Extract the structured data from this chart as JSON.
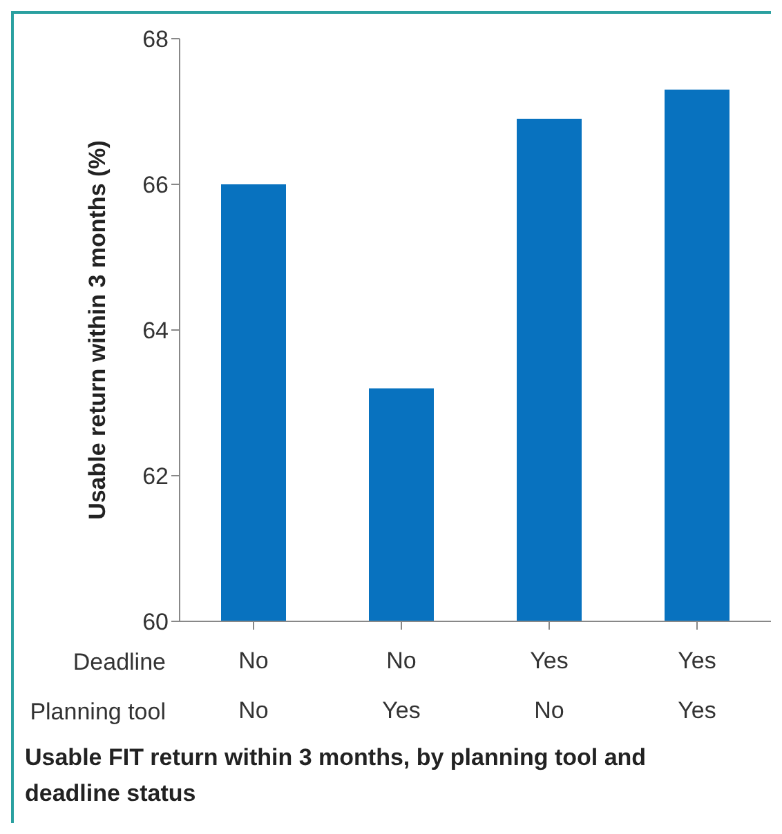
{
  "chart_data": {
    "type": "bar",
    "title": "Usable FIT return within 3 months, by planning tool and deadline status",
    "ylabel": "Usable return within 3 months (%)",
    "categories": [
      "No\nNo",
      "No\nYes",
      "Yes\nNo",
      "Yes\nYes"
    ],
    "annotations": [
      "Deadline",
      "Planning tool"
    ],
    "values": [
      66.0,
      63.2,
      66.9,
      67.3
    ],
    "color": "#0872bf",
    "ylim": [
      60,
      68
    ],
    "yticks": [
      60,
      62,
      64,
      66,
      68
    ]
  }
}
